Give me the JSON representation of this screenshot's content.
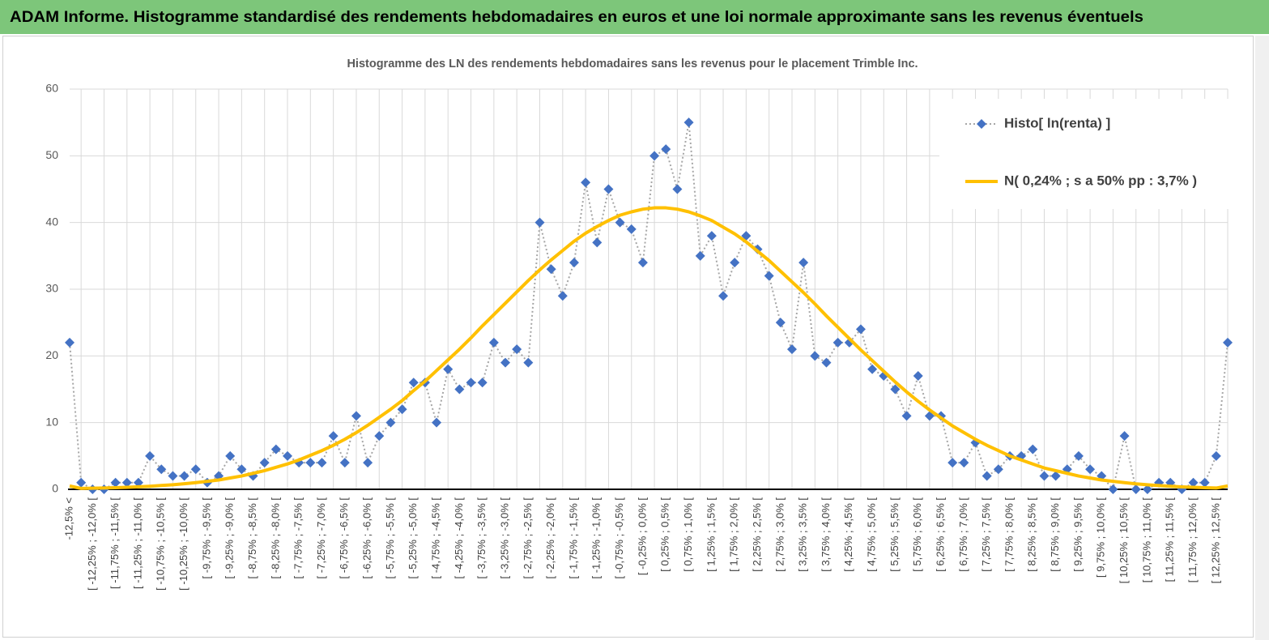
{
  "header": {
    "title": "ADAM Informe. Histogramme standardisé des rendements hebdomadaires en euros et une loi normale approximante sans les revenus éventuels"
  },
  "chart_data": {
    "type": "line",
    "title": "Histogramme des LN des rendements hebdomadaires sans les revenus pour le placement Trimble Inc.",
    "categories": [
      "-12,5% <",
      null,
      "[ -12,25% ; -12,0% [",
      null,
      "[ -11,75% ; -11,5% [",
      null,
      "[ -11,25% ; -11,0% [",
      null,
      "[ -10,75% ; -10,5% [",
      null,
      "[ -10,25% ; -10,0% [",
      null,
      "[ -9,75% ; -9,5% [",
      null,
      "[ -9,25% ; -9,0% [",
      null,
      "[ -8,75% ; -8,5% [",
      null,
      "[ -8,25% ; -8,0% [",
      null,
      "[ -7,75% ; -7,5% [",
      null,
      "[ -7,25% ; -7,0% [",
      null,
      "[ -6,75% ; -6,5% [",
      null,
      "[ -6,25% ; -6,0% [",
      null,
      "[ -5,75% ; -5,5% [",
      null,
      "[ -5,25% ; -5,0% [",
      null,
      "[ -4,75% ; -4,5% [",
      null,
      "[ -4,25% ; -4,0% [",
      null,
      "[ -3,75% ; -3,5% [",
      null,
      "[ -3,25% ; -3,0% [",
      null,
      "[ -2,75% ; -2,5% [",
      null,
      "[ -2,25% ; -2,0% [",
      null,
      "[ -1,75% ; -1,5% [",
      null,
      "[ -1,25% ; -1,0% [",
      null,
      "[ -0,75% ; -0,5% [",
      null,
      "[ -0,25% ; 0,0% [",
      null,
      "[ 0,25% ; 0,5% [",
      null,
      "[ 0,75% ; 1,0% [",
      null,
      "[ 1,25% ; 1,5% [",
      null,
      "[ 1,75% ; 2,0% [",
      null,
      "[ 2,25% ; 2,5% [",
      null,
      "[ 2,75% ; 3,0% [",
      null,
      "[ 3,25% ; 3,5% [",
      null,
      "[ 3,75% ; 4,0% [",
      null,
      "[ 4,25% ; 4,5% [",
      null,
      "[ 4,75% ; 5,0% [",
      null,
      "[ 5,25% ; 5,5% [",
      null,
      "[ 5,75% ; 6,0% [",
      null,
      "[ 6,25% ; 6,5% [",
      null,
      "[ 6,75% ; 7,0% [",
      null,
      "[ 7,25% ; 7,5% [",
      null,
      "[ 7,75% ; 8,0% [",
      null,
      "[ 8,25% ; 8,5% [",
      null,
      "[ 8,75% ; 9,0% [",
      null,
      "[ 9,25% ; 9,5% [",
      null,
      "[ 9,75% ; 10,0% [",
      null,
      "[ 10,25% ; 10,5% [",
      null,
      "[ 10,75% ; 11,0% [",
      null,
      "[ 11,25% ; 11,5% [",
      null,
      "[ 11,75% ; 12,0% [",
      null,
      "[ 12,25% ; 12,5% [",
      null
    ],
    "series": [
      {
        "name": "Histo[ ln(renta) ]",
        "color": "#4472c4",
        "line_color": "#a6a6a6",
        "values": [
          22,
          1,
          0,
          0,
          1,
          1,
          1,
          5,
          3,
          2,
          2,
          3,
          1,
          2,
          5,
          3,
          2,
          4,
          6,
          5,
          4,
          4,
          4,
          8,
          4,
          11,
          4,
          8,
          10,
          12,
          16,
          16,
          10,
          18,
          15,
          16,
          16,
          22,
          19,
          21,
          19,
          40,
          33,
          29,
          34,
          46,
          37,
          45,
          40,
          39,
          34,
          50,
          51,
          45,
          55,
          35,
          38,
          29,
          34,
          38,
          36,
          32,
          25,
          21,
          34,
          20,
          19,
          22,
          22,
          24,
          18,
          17,
          15,
          11,
          17,
          11,
          11,
          4,
          4,
          7,
          2,
          3,
          5,
          5,
          6,
          2,
          2,
          3,
          5,
          3,
          2,
          0,
          8,
          0,
          0,
          1,
          1,
          0,
          1,
          1,
          5,
          22
        ]
      },
      {
        "name": "N( 0,24% ; s a 50% pp : 3,7% )",
        "color": "#ffc000",
        "values": [
          0.5,
          0.13,
          0.16,
          0.2,
          0.25,
          0.31,
          0.38,
          0.46,
          0.57,
          0.69,
          0.83,
          1.0,
          1.2,
          1.4,
          1.7,
          2.0,
          2.4,
          2.8,
          3.3,
          3.8,
          4.4,
          5.1,
          5.8,
          6.6,
          7.5,
          8.5,
          9.6,
          10.8,
          12.0,
          13.3,
          14.8,
          16.2,
          17.8,
          19.4,
          21.0,
          22.7,
          24.5,
          26.2,
          27.9,
          29.6,
          31.3,
          32.9,
          34.4,
          35.8,
          37.2,
          38.4,
          39.4,
          40.3,
          41.1,
          41.6,
          42.0,
          42.2,
          42.2,
          42.0,
          41.6,
          41.0,
          40.3,
          39.3,
          38.3,
          37.1,
          35.7,
          34.3,
          32.7,
          31.1,
          29.5,
          27.8,
          26.0,
          24.3,
          22.6,
          20.9,
          19.3,
          17.7,
          16.1,
          14.6,
          13.2,
          11.9,
          10.7,
          9.5,
          8.5,
          7.5,
          6.6,
          5.8,
          5.0,
          4.4,
          3.8,
          3.2,
          2.8,
          2.4,
          2.0,
          1.7,
          1.4,
          1.2,
          1.0,
          0.82,
          0.68,
          0.56,
          0.46,
          0.37,
          0.3,
          0.24,
          0.19,
          0.5
        ]
      }
    ],
    "ylim": [
      0,
      60
    ],
    "yticks": [
      0,
      10,
      20,
      30,
      40,
      50,
      60
    ],
    "grid": true,
    "legend": "upper right"
  }
}
